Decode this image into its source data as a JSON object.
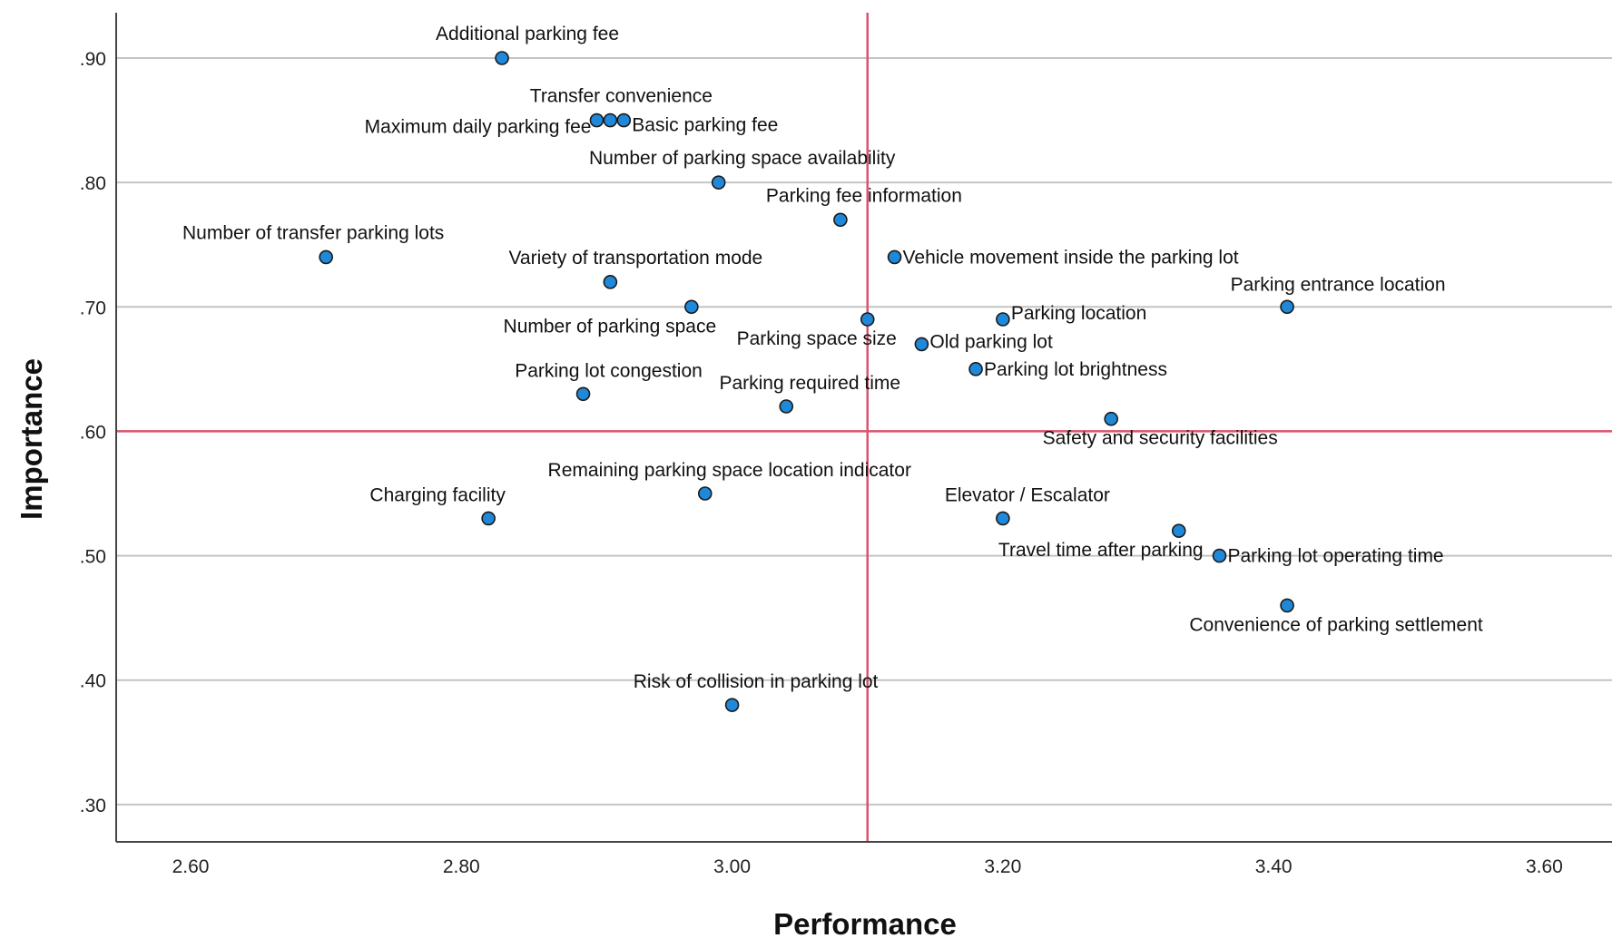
{
  "chart_data": {
    "type": "scatter",
    "title": "",
    "xlabel": "Performance",
    "ylabel": "Importance",
    "xlim": [
      2.545,
      3.65
    ],
    "ylim": [
      0.27,
      0.935
    ],
    "x_ticks": [
      {
        "value": 2.6,
        "label": "2.60"
      },
      {
        "value": 2.8,
        "label": "2.80"
      },
      {
        "value": 3.0,
        "label": "3.00"
      },
      {
        "value": 3.2,
        "label": "3.20"
      },
      {
        "value": 3.4,
        "label": "3.40"
      },
      {
        "value": 3.6,
        "label": "3.60"
      }
    ],
    "y_ticks": [
      {
        "value": 0.3,
        "label": ".30"
      },
      {
        "value": 0.4,
        "label": ".40"
      },
      {
        "value": 0.5,
        "label": ".50"
      },
      {
        "value": 0.6,
        "label": ".60"
      },
      {
        "value": 0.7,
        "label": ".70"
      },
      {
        "value": 0.8,
        "label": ".80"
      },
      {
        "value": 0.9,
        "label": ".90"
      }
    ],
    "grid": {
      "horizontal": true,
      "vertical": false
    },
    "reference_lines": {
      "x": 3.1,
      "y": 0.6
    },
    "colors": {
      "point": "#1f88d9",
      "reference": "#d9546e",
      "grid": "#c4c4c4"
    },
    "points": [
      {
        "label": "Additional parking fee",
        "x": 2.83,
        "y": 0.9
      },
      {
        "label": "Transfer convenience",
        "x": 2.91,
        "y": 0.85
      },
      {
        "label": "Maximum daily parking fee",
        "x": 2.9,
        "y": 0.85
      },
      {
        "label": "Basic parking fee",
        "x": 2.92,
        "y": 0.85
      },
      {
        "label": "Number of parking space availability",
        "x": 2.99,
        "y": 0.8
      },
      {
        "label": "Parking fee information",
        "x": 3.08,
        "y": 0.77
      },
      {
        "label": "Number of transfer parking lots",
        "x": 2.7,
        "y": 0.74
      },
      {
        "label": "Vehicle movement inside the parking lot",
        "x": 3.12,
        "y": 0.74
      },
      {
        "label": "Variety of transportation mode",
        "x": 2.91,
        "y": 0.72
      },
      {
        "label": "Parking entrance location",
        "x": 3.41,
        "y": 0.7
      },
      {
        "label": "Number of parking space",
        "x": 2.97,
        "y": 0.7
      },
      {
        "label": "Parking space size",
        "x": 3.1,
        "y": 0.69
      },
      {
        "label": "Parking location",
        "x": 3.2,
        "y": 0.69
      },
      {
        "label": "Old parking lot",
        "x": 3.14,
        "y": 0.67
      },
      {
        "label": "Parking lot brightness",
        "x": 3.18,
        "y": 0.65
      },
      {
        "label": "Parking lot congestion",
        "x": 2.89,
        "y": 0.63
      },
      {
        "label": "Parking required time",
        "x": 3.04,
        "y": 0.62
      },
      {
        "label": "Safety and security facilities",
        "x": 3.28,
        "y": 0.61
      },
      {
        "label": "Remaining parking space location indicator",
        "x": 2.98,
        "y": 0.55
      },
      {
        "label": "Charging facility",
        "x": 2.82,
        "y": 0.53
      },
      {
        "label": "Elevator / Escalator",
        "x": 3.2,
        "y": 0.53
      },
      {
        "label": "Travel time after parking",
        "x": 3.33,
        "y": 0.52
      },
      {
        "label": "Parking lot operating time",
        "x": 3.36,
        "y": 0.5
      },
      {
        "label": "Convenience of parking settlement",
        "x": 3.41,
        "y": 0.46
      },
      {
        "label": "Risk of collision in parking lot",
        "x": 3.0,
        "y": 0.38
      }
    ]
  }
}
